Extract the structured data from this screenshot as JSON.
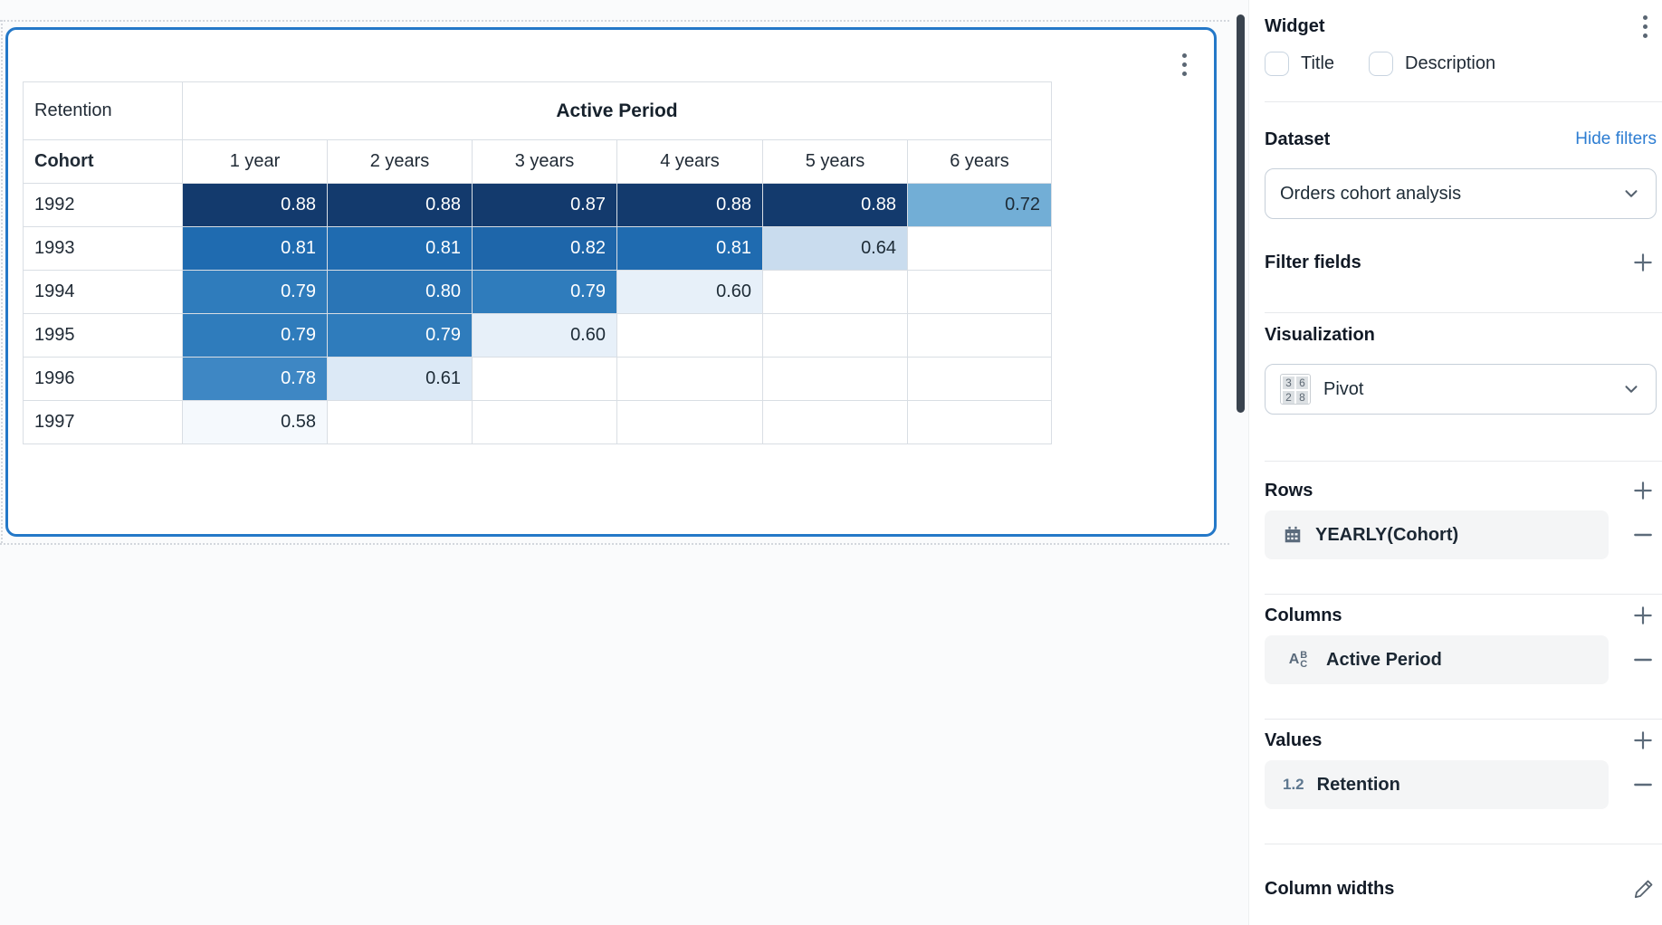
{
  "colors": {
    "widget_border": "#2478C8",
    "link_blue": "#2D7DD2",
    "scrollbar": "#39434E",
    "chip_bg": "#F4F5F6"
  },
  "pivot": {
    "corner_label": "Retention",
    "group_label": "Active Period",
    "row_dim_label": "Cohort",
    "col_headers": [
      "1 year",
      "2 years",
      "3 years",
      "4 years",
      "5 years",
      "6 years"
    ],
    "rows": [
      {
        "label": "1992",
        "cells": [
          {
            "v": "0.88",
            "bg": "#133A6D",
            "fg": "#FFFFFF"
          },
          {
            "v": "0.88",
            "bg": "#133A6D",
            "fg": "#FFFFFF"
          },
          {
            "v": "0.87",
            "bg": "#133A6D",
            "fg": "#FFFFFF"
          },
          {
            "v": "0.88",
            "bg": "#133A6D",
            "fg": "#FFFFFF"
          },
          {
            "v": "0.88",
            "bg": "#133A6D",
            "fg": "#FFFFFF"
          },
          {
            "v": "0.72",
            "bg": "#72AED6",
            "fg": "#1D2B36"
          }
        ]
      },
      {
        "label": "1993",
        "cells": [
          {
            "v": "0.81",
            "bg": "#1F6BB0",
            "fg": "#FFFFFF"
          },
          {
            "v": "0.81",
            "bg": "#1F6BB0",
            "fg": "#FFFFFF"
          },
          {
            "v": "0.82",
            "bg": "#1E66AA",
            "fg": "#FFFFFF"
          },
          {
            "v": "0.81",
            "bg": "#1F6BB0",
            "fg": "#FFFFFF"
          },
          {
            "v": "0.64",
            "bg": "#C9DCEE",
            "fg": "#1D2B36"
          },
          {
            "v": "",
            "bg": "#FFFFFF",
            "fg": "#1D2B36"
          }
        ]
      },
      {
        "label": "1994",
        "cells": [
          {
            "v": "0.79",
            "bg": "#2F7CBC",
            "fg": "#FFFFFF"
          },
          {
            "v": "0.80",
            "bg": "#2A75B6",
            "fg": "#FFFFFF"
          },
          {
            "v": "0.79",
            "bg": "#2F7CBC",
            "fg": "#FFFFFF"
          },
          {
            "v": "0.60",
            "bg": "#E7F0F9",
            "fg": "#1D2B36"
          },
          {
            "v": "",
            "bg": "#FFFFFF",
            "fg": "#1D2B36"
          },
          {
            "v": "",
            "bg": "#FFFFFF",
            "fg": "#1D2B36"
          }
        ]
      },
      {
        "label": "1995",
        "cells": [
          {
            "v": "0.79",
            "bg": "#2F7CBC",
            "fg": "#FFFFFF"
          },
          {
            "v": "0.79",
            "bg": "#2F7CBC",
            "fg": "#FFFFFF"
          },
          {
            "v": "0.60",
            "bg": "#E7F0F9",
            "fg": "#1D2B36"
          },
          {
            "v": "",
            "bg": "#FFFFFF",
            "fg": "#1D2B36"
          },
          {
            "v": "",
            "bg": "#FFFFFF",
            "fg": "#1D2B36"
          },
          {
            "v": "",
            "bg": "#FFFFFF",
            "fg": "#1D2B36"
          }
        ]
      },
      {
        "label": "1996",
        "cells": [
          {
            "v": "0.78",
            "bg": "#3E87C4",
            "fg": "#FFFFFF"
          },
          {
            "v": "0.61",
            "bg": "#DCE9F6",
            "fg": "#1D2B36"
          },
          {
            "v": "",
            "bg": "#FFFFFF",
            "fg": "#1D2B36"
          },
          {
            "v": "",
            "bg": "#FFFFFF",
            "fg": "#1D2B36"
          },
          {
            "v": "",
            "bg": "#FFFFFF",
            "fg": "#1D2B36"
          },
          {
            "v": "",
            "bg": "#FFFFFF",
            "fg": "#1D2B36"
          }
        ]
      },
      {
        "label": "1997",
        "cells": [
          {
            "v": "0.58",
            "bg": "#F5F9FD",
            "fg": "#1D2B36"
          },
          {
            "v": "",
            "bg": "#FFFFFF",
            "fg": "#1D2B36"
          },
          {
            "v": "",
            "bg": "#FFFFFF",
            "fg": "#1D2B36"
          },
          {
            "v": "",
            "bg": "#FFFFFF",
            "fg": "#1D2B36"
          },
          {
            "v": "",
            "bg": "#FFFFFF",
            "fg": "#1D2B36"
          },
          {
            "v": "",
            "bg": "#FFFFFF",
            "fg": "#1D2B36"
          }
        ]
      }
    ]
  },
  "panel": {
    "title": "Widget",
    "checkboxes": {
      "title_label": "Title",
      "description_label": "Description",
      "title_checked": false,
      "description_checked": false
    },
    "dataset": {
      "heading": "Dataset",
      "link": "Hide filters",
      "selected": "Orders cohort analysis"
    },
    "filter_fields": {
      "heading": "Filter fields"
    },
    "visualization": {
      "heading": "Visualization",
      "selected": "Pivot",
      "icon_digits": [
        "3",
        "6",
        "2",
        "8"
      ]
    },
    "rows_section": {
      "heading": "Rows",
      "field": "YEARLY(Cohort)"
    },
    "columns_section": {
      "heading": "Columns",
      "field": "Active Period"
    },
    "values_section": {
      "heading": "Values",
      "field": "Retention",
      "icon_text": "1.2"
    },
    "column_widths": {
      "heading": "Column widths"
    }
  }
}
